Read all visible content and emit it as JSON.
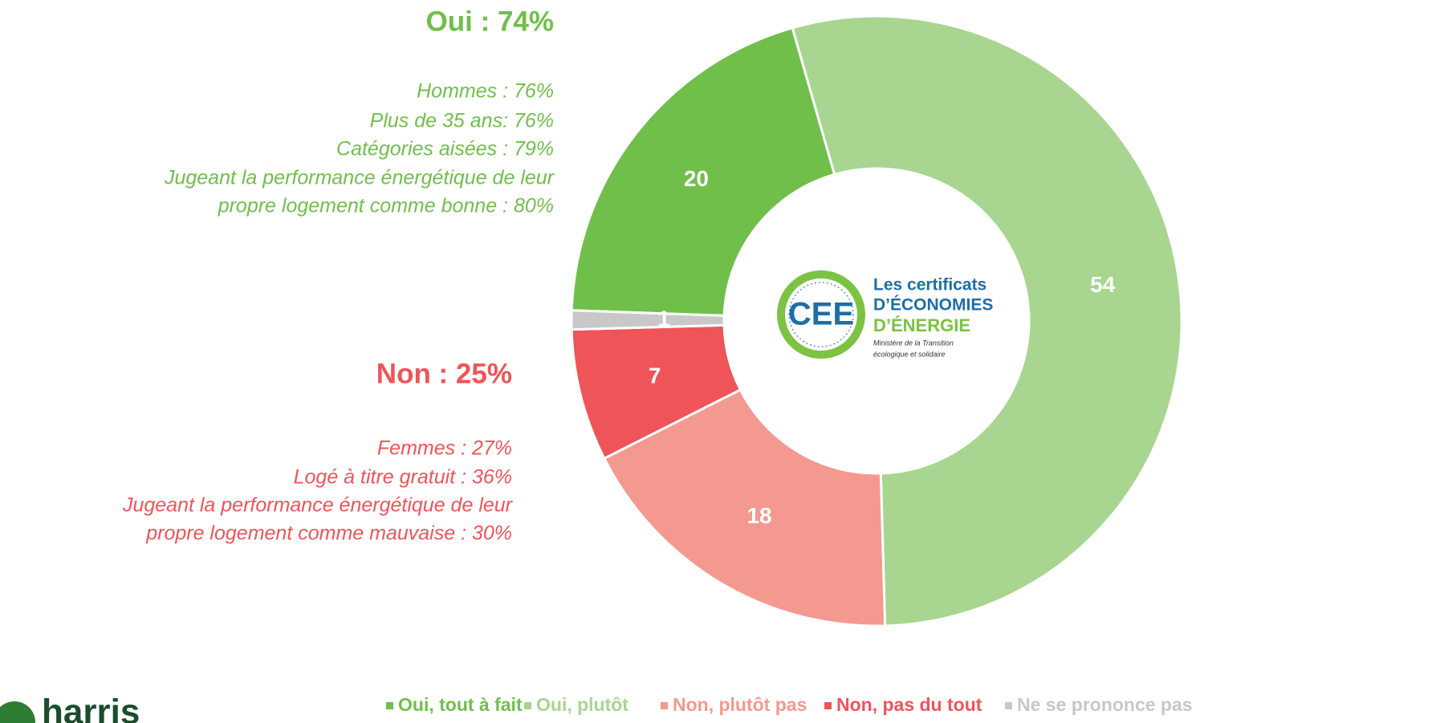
{
  "chart_data": {
    "type": "pie",
    "categories": [
      "Oui, tout à fait",
      "Oui, plutôt",
      "Non, plutôt pas",
      "Non, pas du tout",
      "Ne se prononce pas"
    ],
    "values": [
      20,
      54,
      18,
      7,
      1
    ],
    "colors": [
      "#70bf4b",
      "#a8d58f",
      "#f4998f",
      "#ef5459",
      "#c8c8c8"
    ],
    "legend": "bottom",
    "annotations": [
      {
        "title": "Oui : 74%",
        "lines": [
          "Hommes : 76%",
          "Plus de 35 ans: 76%",
          "Catégories aisées : 79%",
          "Jugeant la performance énergétique de leur",
          "propre logement comme bonne : 80%"
        ]
      },
      {
        "title": "Non : 25%",
        "lines": [
          "Femmes : 27%",
          "Logé à titre gratuit : 36%",
          "Jugeant la performance énergétique de leur",
          "propre logement comme mauvaise : 30%"
        ]
      }
    ]
  },
  "logos": {
    "cee": {
      "badge": "CEE",
      "lines": [
        "Les certificats",
        "D’ÉCONOMIES",
        "D’ÉNERGIE",
        "Ministère de la Transition",
        "écologique et solidaire"
      ]
    },
    "brand": "harris"
  }
}
